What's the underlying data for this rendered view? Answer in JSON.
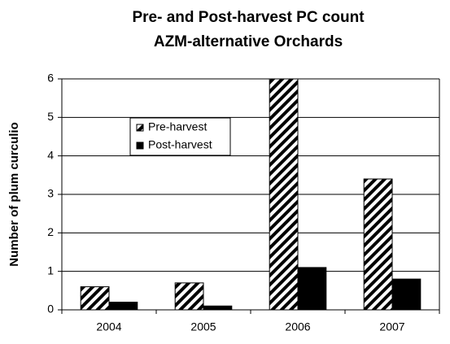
{
  "chart_data": {
    "type": "bar",
    "title": [
      "Pre- and Post-harvest PC count",
      "AZM-alternative Orchards"
    ],
    "y_label": "Number of plum curculio",
    "categories": [
      "2004",
      "2005",
      "2006",
      "2007"
    ],
    "series": [
      {
        "name": "Pre-harvest",
        "color": "#000000",
        "pattern": "hatch",
        "values": [
          0.6,
          0.7,
          6,
          3.4
        ]
      },
      {
        "name": "Post-harvest",
        "color": "#000000",
        "pattern": "solid",
        "values": [
          0.2,
          0.1,
          1.1,
          0.8
        ]
      }
    ],
    "ylim": [
      0,
      6
    ],
    "yticks": [
      0,
      1,
      2,
      3,
      4,
      5,
      6
    ],
    "grid": true,
    "legend": "upper left"
  }
}
